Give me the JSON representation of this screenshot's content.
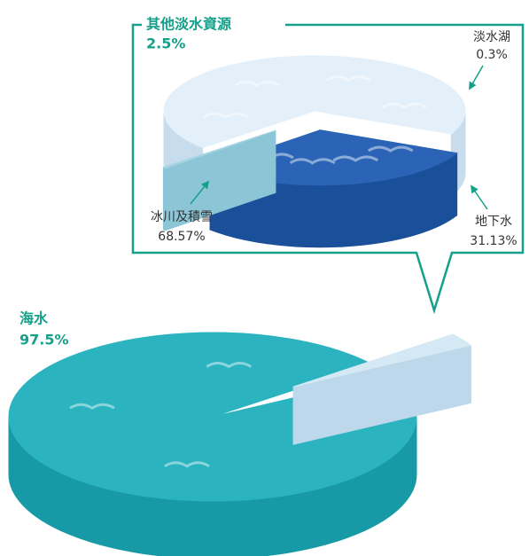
{
  "chart_data": [
    {
      "type": "pie",
      "categories": [
        "海水",
        "其他淡水資源"
      ],
      "values": [
        97.5,
        2.5
      ],
      "value_labels": [
        "97.5%",
        "2.5%"
      ],
      "colors": [
        "#2bb3c0",
        "#d4e9f4"
      ],
      "side_colors": [
        "#179aa6",
        "#bcd8ea"
      ]
    },
    {
      "type": "pie",
      "categories": [
        "冰川及積雪",
        "地下水",
        "淡水湖"
      ],
      "values": [
        68.57,
        31.13,
        0.3
      ],
      "value_labels": [
        "68.57%",
        "31.13%",
        "0.3%"
      ],
      "colors": [
        "#e3f0f9",
        "#2b64b6",
        "#a5d5e2"
      ],
      "side_colors": [
        "#c7dced",
        "#1a4f99",
        "#8cc6d6"
      ]
    }
  ]
}
